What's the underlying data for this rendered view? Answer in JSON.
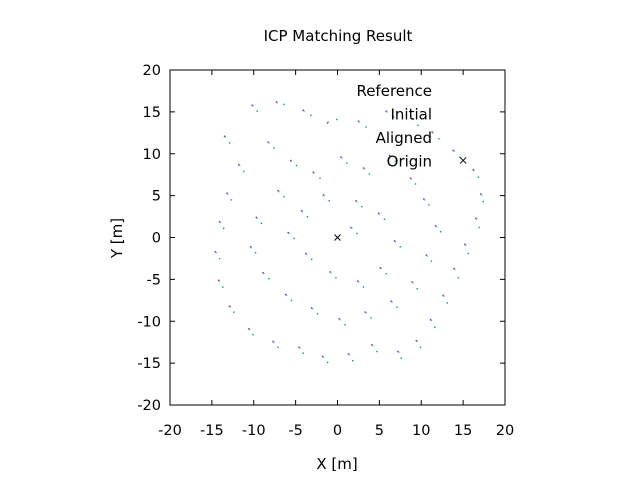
{
  "chart_data": {
    "type": "scatter",
    "title": "ICP Matching Result",
    "xlabel": "X [m]",
    "ylabel": "Y [m]",
    "xlim": [
      -20,
      20
    ],
    "ylim": [
      -20,
      20
    ],
    "xticks": [
      -20,
      -15,
      -10,
      -5,
      0,
      5,
      10,
      15,
      20
    ],
    "yticks": [
      -20,
      -15,
      -10,
      -5,
      0,
      5,
      10,
      15,
      20
    ],
    "grid": false,
    "legend_position": "top-right",
    "series": [
      {
        "name": "Reference",
        "color": "#9400d3",
        "points": [
          [
            -13.5,
            12.1
          ],
          [
            -10.2,
            15.8
          ],
          [
            -7.3,
            16.2
          ],
          [
            -4.1,
            15.2
          ],
          [
            -1.2,
            13.7
          ],
          [
            2.5,
            13.9
          ],
          [
            5.8,
            15.1
          ],
          [
            8.9,
            14.2
          ],
          [
            11.3,
            12.6
          ],
          [
            13.8,
            10.4
          ],
          [
            16.2,
            8.1
          ],
          [
            17.1,
            5.2
          ],
          [
            16.5,
            2.3
          ],
          [
            15.2,
            -0.8
          ],
          [
            13.9,
            -3.7
          ],
          [
            12.6,
            -6.9
          ],
          [
            11.1,
            -9.8
          ],
          [
            9.4,
            -12.3
          ],
          [
            7.2,
            -13.6
          ],
          [
            4.1,
            -12.8
          ],
          [
            1.3,
            -13.9
          ],
          [
            -1.8,
            -14.2
          ],
          [
            -4.6,
            -13.1
          ],
          [
            -7.7,
            -12.4
          ],
          [
            -10.6,
            -10.9
          ],
          [
            -12.9,
            -8.2
          ],
          [
            -14.2,
            -5.1
          ],
          [
            -14.6,
            -1.7
          ],
          [
            -14.1,
            1.9
          ],
          [
            -13.2,
            5.3
          ],
          [
            -11.8,
            8.7
          ],
          [
            -8.3,
            11.4
          ],
          [
            -5.6,
            9.2
          ],
          [
            -2.9,
            7.8
          ],
          [
            0.4,
            9.6
          ],
          [
            3.1,
            8.3
          ],
          [
            6.2,
            9.8
          ],
          [
            8.7,
            7.1
          ],
          [
            10.3,
            4.6
          ],
          [
            11.7,
            1.4
          ],
          [
            10.6,
            -2.1
          ],
          [
            8.9,
            -5.3
          ],
          [
            6.4,
            -7.6
          ],
          [
            3.3,
            -8.9
          ],
          [
            0.2,
            -9.7
          ],
          [
            -3.1,
            -8.4
          ],
          [
            -6.2,
            -6.8
          ],
          [
            -8.9,
            -4.2
          ],
          [
            -10.4,
            -1.1
          ],
          [
            -9.7,
            2.4
          ],
          [
            -7.1,
            5.6
          ],
          [
            -4.3,
            3.2
          ],
          [
            -1.7,
            5.1
          ],
          [
            2.2,
            4.4
          ],
          [
            4.9,
            2.9
          ],
          [
            6.8,
            -0.4
          ],
          [
            5.1,
            -3.6
          ],
          [
            2.4,
            -5.2
          ],
          [
            -0.9,
            -4.1
          ],
          [
            -3.8,
            -1.9
          ],
          [
            -5.9,
            0.6
          ],
          [
            1.6,
            1.2
          ]
        ]
      },
      {
        "name": "Initial",
        "color": "#009e73",
        "points": [
          [
            -12.9,
            11.3
          ],
          [
            -9.6,
            15.1
          ],
          [
            -6.4,
            15.9
          ],
          [
            -3.2,
            14.6
          ],
          [
            -0.1,
            14.1
          ],
          [
            3.4,
            13.2
          ],
          [
            6.7,
            14.4
          ],
          [
            9.6,
            13.4
          ],
          [
            12.1,
            11.8
          ],
          [
            14.6,
            9.6
          ],
          [
            16.8,
            7.2
          ],
          [
            17.4,
            4.3
          ],
          [
            16.9,
            1.2
          ],
          [
            15.6,
            -1.9
          ],
          [
            14.4,
            -4.8
          ],
          [
            13.1,
            -7.8
          ],
          [
            11.6,
            -10.7
          ],
          [
            9.9,
            -13.1
          ],
          [
            7.6,
            -14.4
          ],
          [
            4.7,
            -13.6
          ],
          [
            1.8,
            -14.7
          ],
          [
            -1.2,
            -14.9
          ],
          [
            -4.1,
            -13.8
          ],
          [
            -7.1,
            -13.1
          ],
          [
            -10.1,
            -11.6
          ],
          [
            -12.4,
            -8.9
          ],
          [
            -13.7,
            -5.9
          ],
          [
            -14.1,
            -2.5
          ],
          [
            -13.6,
            1.1
          ],
          [
            -12.7,
            4.5
          ],
          [
            -11.2,
            7.9
          ],
          [
            -7.6,
            10.7
          ],
          [
            -4.9,
            8.6
          ],
          [
            -2.1,
            7.1
          ],
          [
            1.1,
            8.9
          ],
          [
            3.8,
            7.6
          ],
          [
            6.9,
            9.1
          ],
          [
            9.3,
            6.4
          ],
          [
            10.9,
            3.9
          ],
          [
            12.3,
            0.7
          ],
          [
            11.2,
            -2.8
          ],
          [
            9.5,
            -6.1
          ],
          [
            7.1,
            -8.3
          ],
          [
            4.0,
            -9.6
          ],
          [
            0.9,
            -10.4
          ],
          [
            -2.4,
            -9.1
          ],
          [
            -5.5,
            -7.5
          ],
          [
            -8.2,
            -4.9
          ],
          [
            -9.8,
            -1.8
          ],
          [
            -9.1,
            1.7
          ],
          [
            -6.4,
            4.9
          ],
          [
            -3.6,
            2.5
          ],
          [
            -1.0,
            4.4
          ],
          [
            2.9,
            3.7
          ],
          [
            5.6,
            2.2
          ],
          [
            7.5,
            -1.1
          ],
          [
            5.8,
            -4.3
          ],
          [
            3.1,
            -5.9
          ],
          [
            -0.2,
            -4.8
          ],
          [
            -3.1,
            -2.6
          ],
          [
            -5.2,
            -0.1
          ],
          [
            2.3,
            0.5
          ]
        ]
      },
      {
        "name": "Aligned",
        "color": "#56b4e9",
        "points": [
          [
            -13.4,
            12.0
          ],
          [
            -10.1,
            15.7
          ],
          [
            -7.2,
            16.1
          ],
          [
            -4.0,
            15.1
          ],
          [
            -1.1,
            13.8
          ],
          [
            2.6,
            13.8
          ],
          [
            5.9,
            15.0
          ],
          [
            9.0,
            14.1
          ],
          [
            11.4,
            12.5
          ],
          [
            13.9,
            10.3
          ],
          [
            16.3,
            8.0
          ],
          [
            17.2,
            5.1
          ],
          [
            16.6,
            2.2
          ],
          [
            15.3,
            -0.9
          ],
          [
            14.0,
            -3.8
          ],
          [
            12.7,
            -7.0
          ],
          [
            11.2,
            -9.9
          ],
          [
            9.5,
            -12.4
          ],
          [
            7.3,
            -13.7
          ],
          [
            4.2,
            -12.9
          ],
          [
            1.4,
            -14.0
          ],
          [
            -1.7,
            -14.3
          ],
          [
            -4.5,
            -13.2
          ],
          [
            -7.6,
            -12.5
          ],
          [
            -10.5,
            -11.0
          ],
          [
            -12.8,
            -8.3
          ],
          [
            -14.1,
            -5.2
          ],
          [
            -14.5,
            -1.8
          ],
          [
            -14.0,
            1.8
          ],
          [
            -13.1,
            5.2
          ],
          [
            -11.7,
            8.6
          ],
          [
            -8.2,
            11.3
          ],
          [
            -5.5,
            9.1
          ],
          [
            -2.8,
            7.7
          ],
          [
            0.5,
            9.5
          ],
          [
            3.2,
            8.2
          ],
          [
            6.3,
            9.7
          ],
          [
            8.8,
            7.0
          ],
          [
            10.4,
            4.5
          ],
          [
            11.8,
            1.3
          ],
          [
            10.7,
            -2.2
          ],
          [
            9.0,
            -5.4
          ],
          [
            6.5,
            -7.7
          ],
          [
            3.4,
            -9.0
          ],
          [
            0.3,
            -9.8
          ],
          [
            -3.0,
            -8.5
          ],
          [
            -6.1,
            -6.9
          ],
          [
            -8.8,
            -4.3
          ],
          [
            -10.3,
            -1.2
          ],
          [
            -9.6,
            2.3
          ],
          [
            -7.0,
            5.5
          ],
          [
            -4.2,
            3.1
          ],
          [
            -1.6,
            5.0
          ],
          [
            2.3,
            4.3
          ],
          [
            5.0,
            2.8
          ],
          [
            6.9,
            -0.5
          ],
          [
            5.2,
            -3.7
          ],
          [
            2.5,
            -5.3
          ],
          [
            -0.8,
            -4.2
          ],
          [
            -3.7,
            -2.0
          ],
          [
            -5.8,
            0.5
          ],
          [
            1.7,
            1.1
          ]
        ]
      },
      {
        "name": "Origin",
        "color": "#000000",
        "marker": "x",
        "points": [
          [
            0,
            0
          ],
          [
            15,
            9.2
          ]
        ]
      }
    ]
  }
}
